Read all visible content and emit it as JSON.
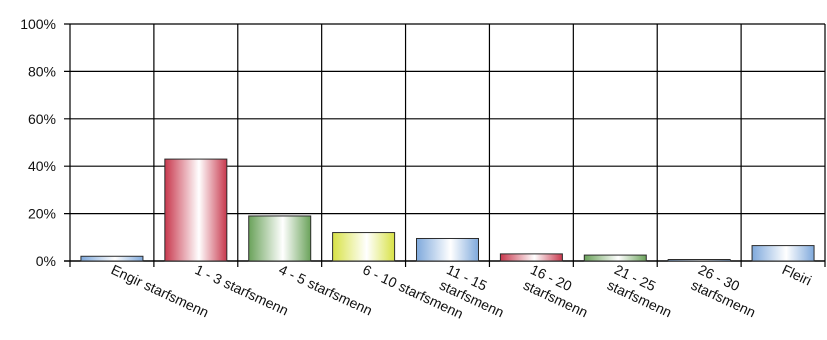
{
  "chart_data": {
    "type": "bar",
    "categories": [
      [
        "Engir starfsmenn"
      ],
      [
        "1 - 3 starfsmenn"
      ],
      [
        "4 - 5 starfsmenn"
      ],
      [
        "6 - 10 starfsmenn"
      ],
      [
        "11 - 15",
        "starfsmenn"
      ],
      [
        "16 - 20",
        "starfsmenn"
      ],
      [
        "21 - 25",
        "starfsmenn"
      ],
      [
        "26 - 30",
        "starfsmenn"
      ],
      [
        "Fleiri"
      ]
    ],
    "values": [
      2,
      43,
      19,
      12,
      9.5,
      3,
      2.5,
      0.5,
      6.5
    ],
    "y_unit": "%",
    "yticks": [
      "0%",
      "20%",
      "40%",
      "60%",
      "80%",
      "100%"
    ],
    "ylim": [
      0,
      100
    ],
    "grid": true,
    "title": "",
    "xlabel": "",
    "ylabel": "",
    "colors": {
      "blue": "#7fa9dc",
      "red": "#c8384d",
      "green": "#6aa25a",
      "yellow": "#d8e246",
      "grid": "#000000"
    },
    "bar_colors": [
      "blue",
      "red",
      "green",
      "yellow",
      "blue",
      "red",
      "green",
      "blue",
      "blue"
    ]
  }
}
